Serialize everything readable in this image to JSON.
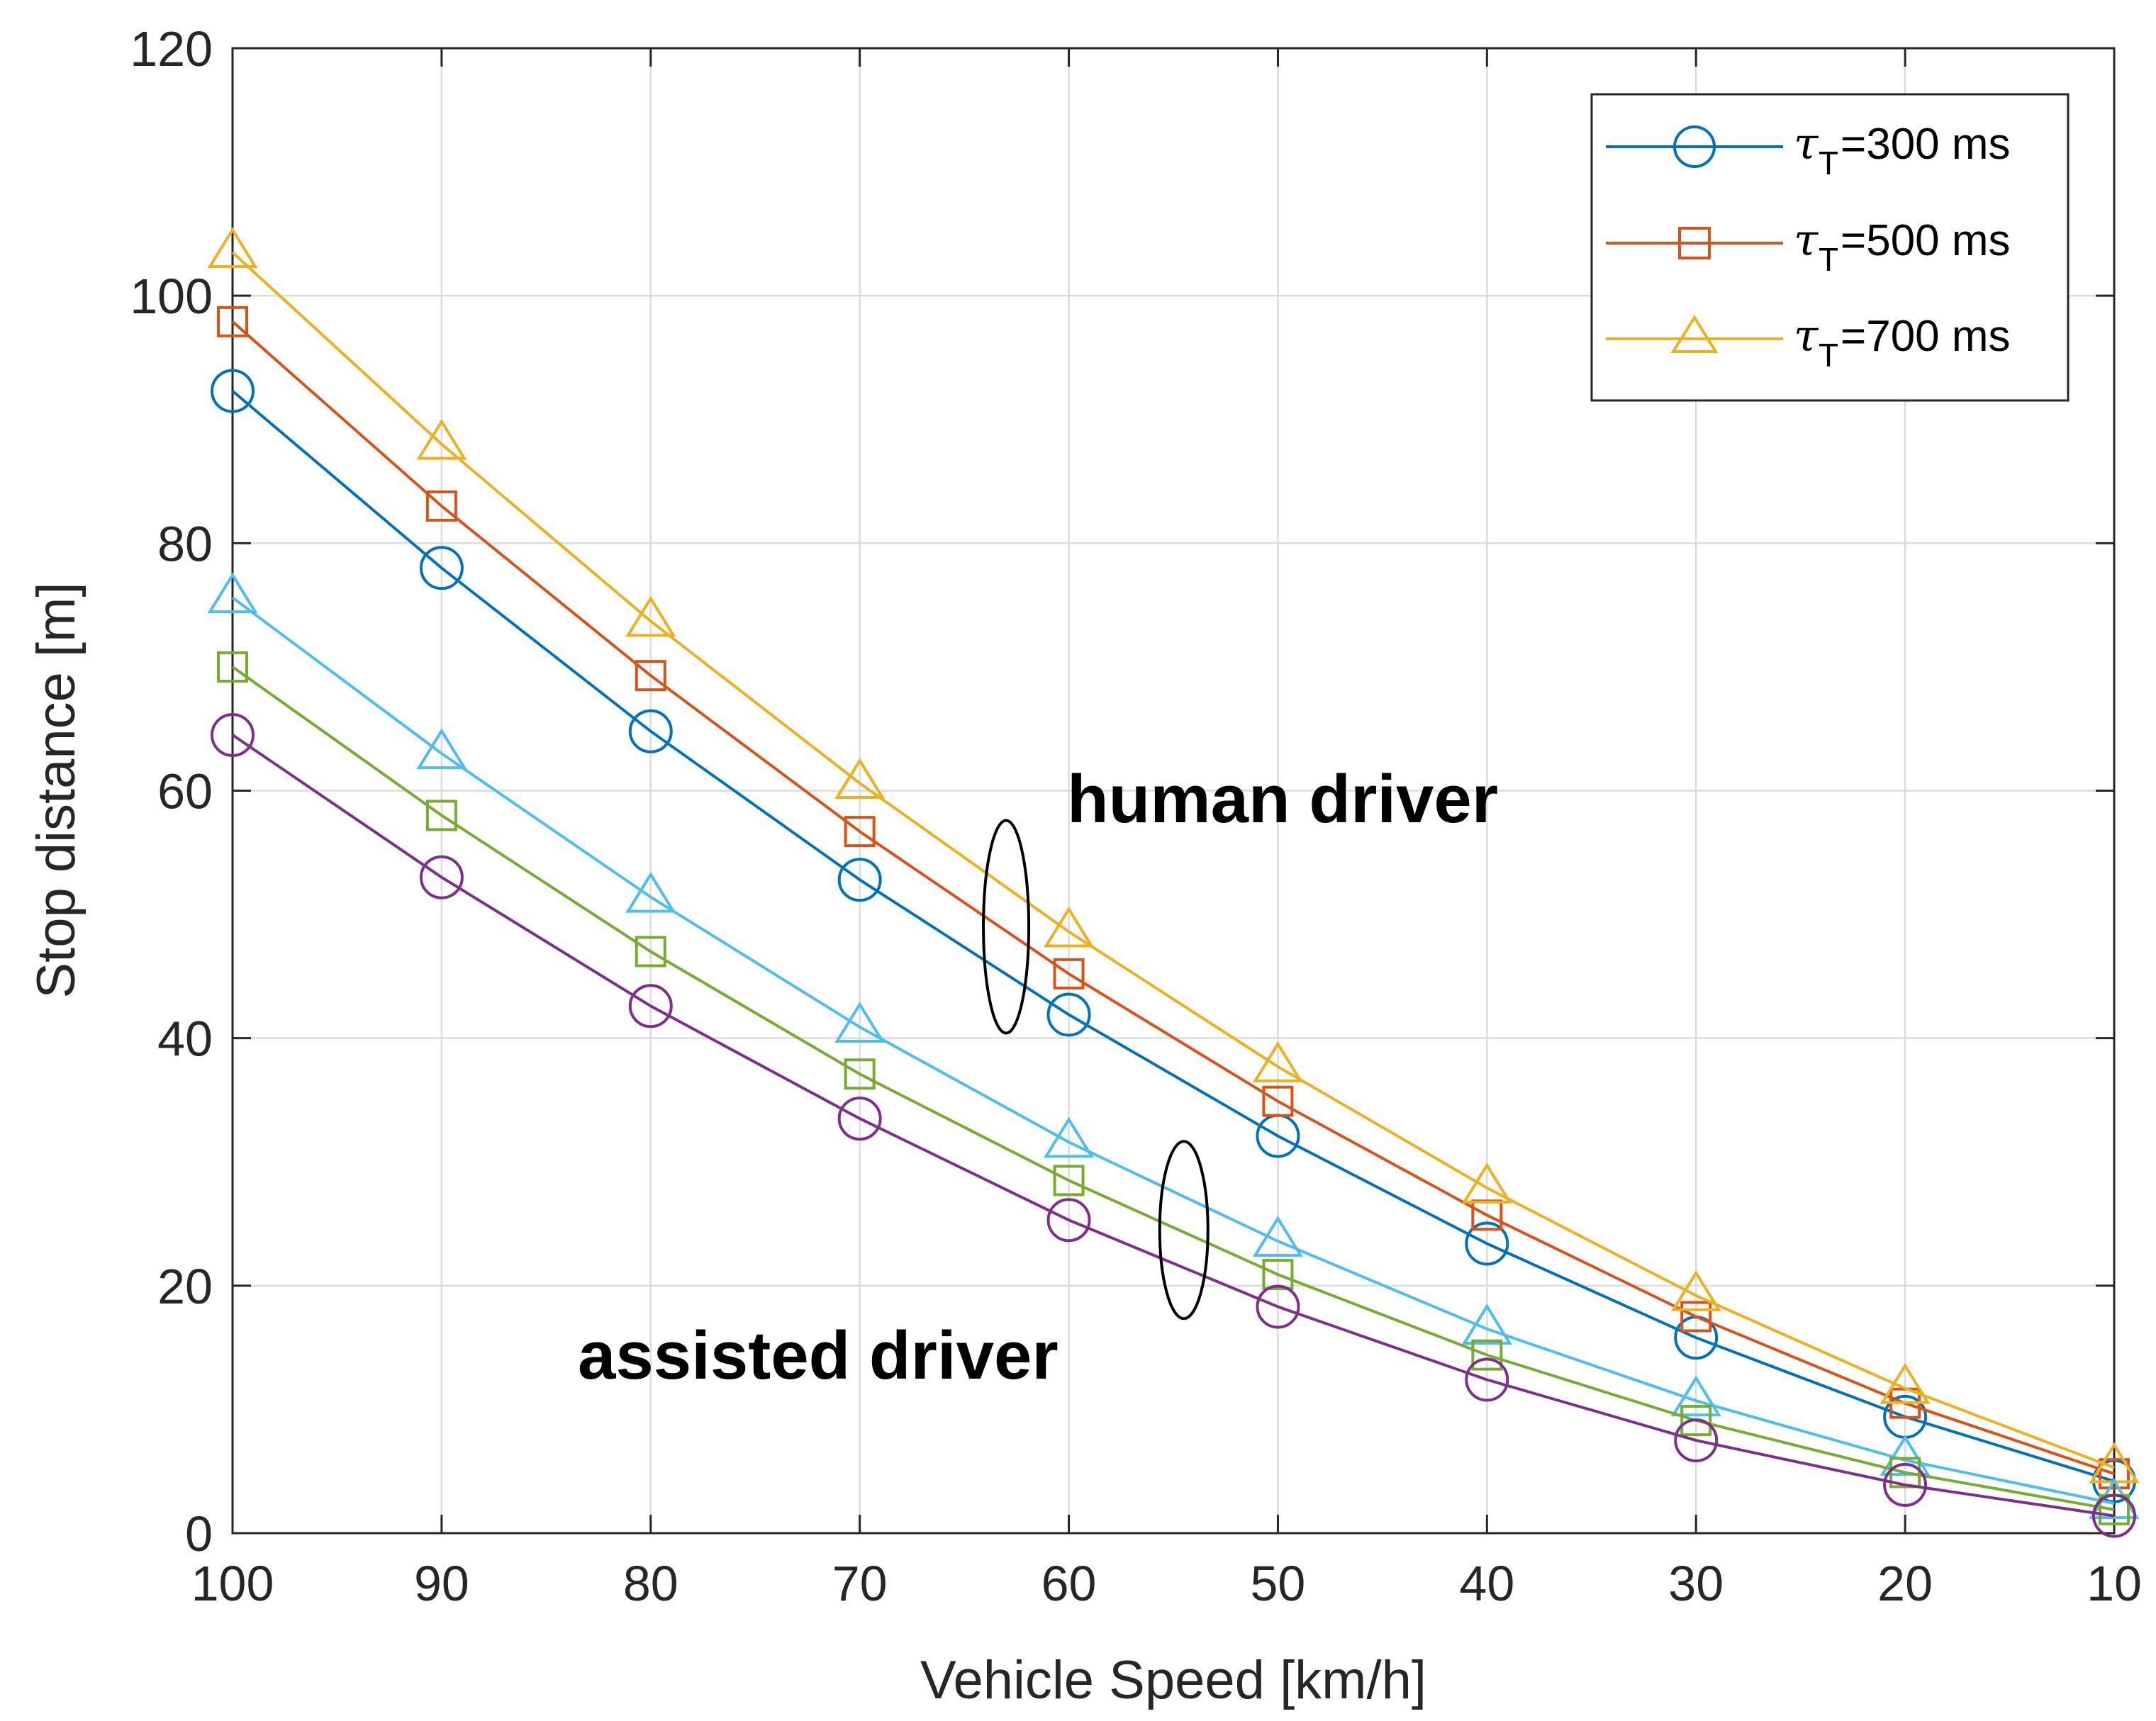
{
  "chart_data": {
    "type": "line",
    "title": "",
    "xlabel": "Vehicle Speed [km/h]",
    "ylabel": "Stop distance [m]",
    "x": [
      100,
      90,
      80,
      70,
      60,
      50,
      40,
      30,
      20,
      10
    ],
    "x_tick_labels": [
      "100",
      "90",
      "80",
      "70",
      "60",
      "50",
      "40",
      "30",
      "20",
      "10"
    ],
    "xlim": [
      100,
      10
    ],
    "x_reversed": true,
    "ylim": [
      0,
      120
    ],
    "y_ticks": [
      0,
      20,
      40,
      60,
      80,
      100,
      120
    ],
    "y_tick_labels": [
      "0",
      "20",
      "40",
      "60",
      "80",
      "100",
      "120"
    ],
    "grid": true,
    "legend_position": "top-right",
    "legend": [
      {
        "symbol": "τ",
        "subscript": "T",
        "text": "=300 ms",
        "color": "#0072BD",
        "marker": "circle"
      },
      {
        "symbol": "τ",
        "subscript": "T",
        "text": "=500 ms",
        "color": "#D95319",
        "marker": "square"
      },
      {
        "symbol": "τ",
        "subscript": "T",
        "text": "=700 ms",
        "color": "#EDB120",
        "marker": "triangle"
      }
    ],
    "series": [
      {
        "name": "human driver, τT=300 ms",
        "color": "#0072BD",
        "marker": "circle",
        "values": [
          92.3,
          78.0,
          64.8,
          52.8,
          41.9,
          32.1,
          23.4,
          15.8,
          9.4,
          4.2
        ]
      },
      {
        "name": "human driver, τT=500 ms",
        "color": "#D95319",
        "marker": "square",
        "values": [
          97.9,
          83.0,
          69.3,
          56.7,
          45.2,
          34.9,
          25.7,
          17.5,
          10.5,
          4.8
        ]
      },
      {
        "name": "human driver, τT=700 ms",
        "color": "#EDB120",
        "marker": "triangle",
        "values": [
          103.5,
          88.0,
          73.7,
          60.6,
          48.6,
          37.7,
          27.9,
          19.2,
          11.7,
          5.3
        ]
      },
      {
        "name": "assisted driver, upper",
        "color": "#4DBEEE",
        "marker": "triangle",
        "values": [
          75.6,
          63.0,
          51.4,
          40.9,
          31.6,
          23.6,
          16.5,
          10.7,
          5.9,
          2.4
        ]
      },
      {
        "name": "assisted driver, middle",
        "color": "#77AC30",
        "marker": "square",
        "values": [
          70.0,
          58.0,
          47.0,
          37.1,
          28.5,
          20.9,
          14.4,
          9.1,
          4.9,
          1.9
        ]
      },
      {
        "name": "assisted driver, lower",
        "color": "#7E2F8E",
        "marker": "circle",
        "values": [
          64.5,
          53.0,
          42.6,
          33.5,
          25.3,
          18.3,
          12.4,
          7.5,
          3.9,
          1.4
        ]
      }
    ],
    "annotations": [
      {
        "text": "human driver",
        "ellipse_center": {
          "x": 63.0,
          "y": 49.0
        }
      },
      {
        "text": "assisted driver",
        "ellipse_center": {
          "x": 54.5,
          "y": 24.5
        }
      }
    ]
  }
}
